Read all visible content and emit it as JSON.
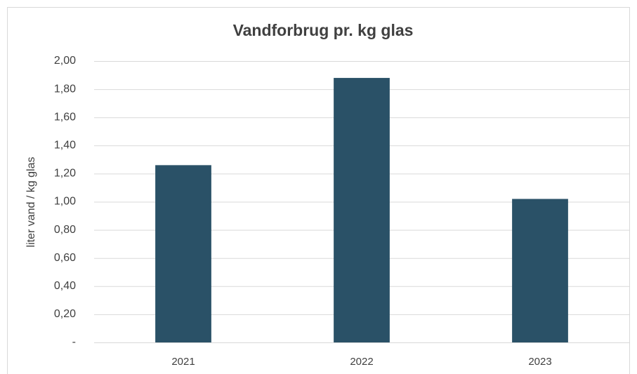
{
  "chart_data": {
    "type": "bar",
    "title": "Vandforbrug pr. kg glas",
    "y_label": "liter vand / kg glas",
    "categories": [
      "2021",
      "2022",
      "2023"
    ],
    "values": [
      1.26,
      1.88,
      1.02
    ],
    "color": "#2a5167",
    "ylim": [
      0,
      2
    ],
    "yticks": [
      {
        "value": 0,
        "label": "-"
      },
      {
        "value": 0.2,
        "label": "0,20"
      },
      {
        "value": 0.4,
        "label": "0,40"
      },
      {
        "value": 0.6,
        "label": "0,60"
      },
      {
        "value": 0.8,
        "label": "0,80"
      },
      {
        "value": 1.0,
        "label": "1,00"
      },
      {
        "value": 1.2,
        "label": "1,20"
      },
      {
        "value": 1.4,
        "label": "1,40"
      },
      {
        "value": 1.6,
        "label": "1,60"
      },
      {
        "value": 1.8,
        "label": "1,80"
      },
      {
        "value": 2.0,
        "label": "2,00"
      }
    ],
    "grid": true
  }
}
